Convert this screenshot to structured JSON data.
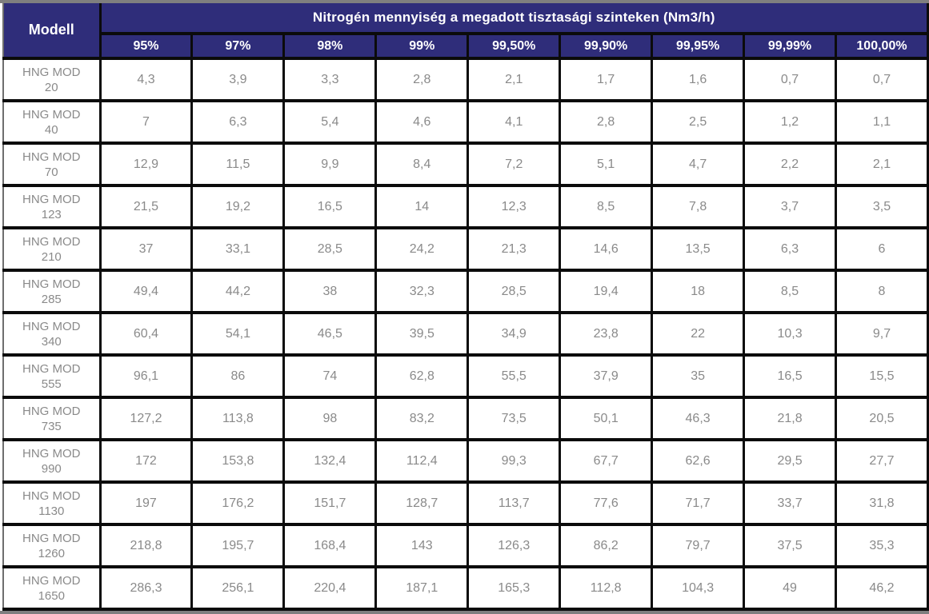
{
  "colors": {
    "header_bg": "#2F2D7A",
    "header_text": "#FFFFFF",
    "cell_text": "#8A8A8A",
    "grid_border": "#0B0B0B",
    "edge_strip": "#7F7F7F",
    "cell_bg": "#FFFFFF"
  },
  "table": {
    "corner_header": "Modell",
    "group_header": "Nitrogén mennyiség a megadott tisztasági szinteken (Nm3/h)",
    "purity_headers": [
      "95%",
      "97%",
      "98%",
      "99%",
      "99,50%",
      "99,90%",
      "99,95%",
      "99,99%",
      "100,00%"
    ],
    "rows": [
      {
        "series": "HNG MOD",
        "size": "20",
        "values": [
          "4,3",
          "3,9",
          "3,3",
          "2,8",
          "2,1",
          "1,7",
          "1,6",
          "0,7",
          "0,7"
        ]
      },
      {
        "series": "HNG MOD",
        "size": "40",
        "values": [
          "7",
          "6,3",
          "5,4",
          "4,6",
          "4,1",
          "2,8",
          "2,5",
          "1,2",
          "1,1"
        ]
      },
      {
        "series": "HNG MOD",
        "size": "70",
        "values": [
          "12,9",
          "11,5",
          "9,9",
          "8,4",
          "7,2",
          "5,1",
          "4,7",
          "2,2",
          "2,1"
        ]
      },
      {
        "series": "HNG MOD",
        "size": "123",
        "values": [
          "21,5",
          "19,2",
          "16,5",
          "14",
          "12,3",
          "8,5",
          "7,8",
          "3,7",
          "3,5"
        ]
      },
      {
        "series": "HNG MOD",
        "size": "210",
        "values": [
          "37",
          "33,1",
          "28,5",
          "24,2",
          "21,3",
          "14,6",
          "13,5",
          "6,3",
          "6"
        ]
      },
      {
        "series": "HNG MOD",
        "size": "285",
        "values": [
          "49,4",
          "44,2",
          "38",
          "32,3",
          "28,5",
          "19,4",
          "18",
          "8,5",
          "8"
        ]
      },
      {
        "series": "HNG MOD",
        "size": "340",
        "values": [
          "60,4",
          "54,1",
          "46,5",
          "39,5",
          "34,9",
          "23,8",
          "22",
          "10,3",
          "9,7"
        ]
      },
      {
        "series": "HNG MOD",
        "size": "555",
        "values": [
          "96,1",
          "86",
          "74",
          "62,8",
          "55,5",
          "37,9",
          "35",
          "16,5",
          "15,5"
        ]
      },
      {
        "series": "HNG MOD",
        "size": "735",
        "values": [
          "127,2",
          "113,8",
          "98",
          "83,2",
          "73,5",
          "50,1",
          "46,3",
          "21,8",
          "20,5"
        ]
      },
      {
        "series": "HNG MOD",
        "size": "990",
        "values": [
          "172",
          "153,8",
          "132,4",
          "112,4",
          "99,3",
          "67,7",
          "62,6",
          "29,5",
          "27,7"
        ]
      },
      {
        "series": "HNG MOD",
        "size": "1130",
        "values": [
          "197",
          "176,2",
          "151,7",
          "128,7",
          "113,7",
          "77,6",
          "71,7",
          "33,7",
          "31,8"
        ]
      },
      {
        "series": "HNG MOD",
        "size": "1260",
        "values": [
          "218,8",
          "195,7",
          "168,4",
          "143",
          "126,3",
          "86,2",
          "79,7",
          "37,5",
          "35,3"
        ]
      },
      {
        "series": "HNG MOD",
        "size": "1650",
        "values": [
          "286,3",
          "256,1",
          "220,4",
          "187,1",
          "165,3",
          "112,8",
          "104,3",
          "49",
          "46,2"
        ]
      }
    ]
  }
}
